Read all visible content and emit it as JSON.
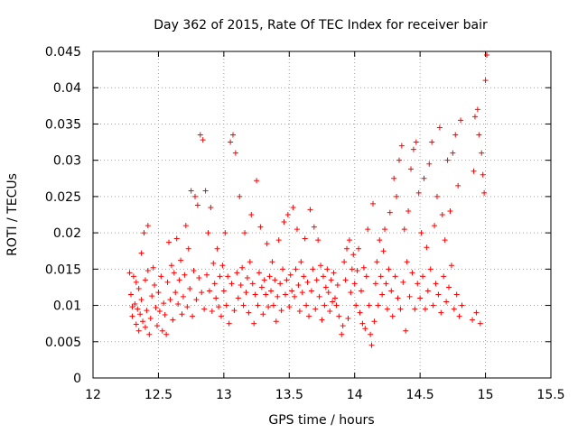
{
  "chart_data": {
    "type": "scatter",
    "title": "Day 362 of 2015, Rate Of TEC Index for receiver bair",
    "xlabel": "GPS time / hours",
    "ylabel": "ROTI / TECUs",
    "xlim": [
      12,
      15.5
    ],
    "ylim": [
      0,
      0.045
    ],
    "xticks": [
      "12",
      "12.5",
      "13",
      "13.5",
      "14",
      "14.5",
      "15",
      "15.5"
    ],
    "yticks": [
      "0",
      "0.005",
      "0.01",
      "0.015",
      "0.02",
      "0.025",
      "0.03",
      "0.035",
      "0.04",
      "0.045"
    ],
    "grid": true,
    "marker": "plus",
    "color": "#ff0000",
    "series": [
      {
        "points": [
          [
            12.28,
            0.0145
          ],
          [
            12.29,
            0.0115
          ],
          [
            12.3,
            0.0098
          ],
          [
            12.3,
            0.0085
          ],
          [
            12.31,
            0.014
          ],
          [
            12.32,
            0.0102
          ],
          [
            12.33,
            0.0074
          ],
          [
            12.33,
            0.0132
          ],
          [
            12.34,
            0.0095
          ],
          [
            12.35,
            0.0123
          ],
          [
            12.35,
            0.0065
          ],
          [
            12.36,
            0.0088
          ],
          [
            12.37,
            0.0108
          ],
          [
            12.37,
            0.0172
          ],
          [
            12.38,
            0.0078
          ],
          [
            12.39,
            0.02
          ],
          [
            12.4,
            0.007
          ],
          [
            12.4,
            0.0135
          ],
          [
            12.41,
            0.0093
          ],
          [
            12.42,
            0.021
          ],
          [
            12.42,
            0.0148
          ],
          [
            12.43,
            0.006
          ],
          [
            12.44,
            0.0082
          ],
          [
            12.45,
            0.0113
          ],
          [
            12.46,
            0.0152
          ],
          [
            12.47,
            0.0128
          ],
          [
            12.48,
            0.0097
          ],
          [
            12.49,
            0.0072
          ],
          [
            12.5,
            0.0118
          ],
          [
            12.51,
            0.0092
          ],
          [
            12.52,
            0.014
          ],
          [
            12.53,
            0.0065
          ],
          [
            12.54,
            0.0103
          ],
          [
            12.55,
            0.0087
          ],
          [
            12.56,
            0.006
          ],
          [
            12.57,
            0.0132
          ],
          [
            12.58,
            0.0187
          ],
          [
            12.59,
            0.0108
          ],
          [
            12.6,
            0.0155
          ],
          [
            12.61,
            0.008
          ],
          [
            12.62,
            0.0145
          ],
          [
            12.63,
            0.0118
          ],
          [
            12.64,
            0.0192
          ],
          [
            12.65,
            0.0102
          ],
          [
            12.66,
            0.0135
          ],
          [
            12.67,
            0.0162
          ],
          [
            12.68,
            0.0088
          ],
          [
            12.69,
            0.0112
          ],
          [
            12.7,
            0.0142
          ],
          [
            12.71,
            0.021
          ],
          [
            12.72,
            0.0098
          ],
          [
            12.73,
            0.0178
          ],
          [
            12.74,
            0.0123
          ],
          [
            12.75,
            0.0258
          ],
          [
            12.76,
            0.0085
          ],
          [
            12.77,
            0.0148
          ],
          [
            12.78,
            0.025
          ],
          [
            12.79,
            0.0108
          ],
          [
            12.8,
            0.0238
          ],
          [
            12.81,
            0.0138
          ],
          [
            12.82,
            0.0335
          ],
          [
            12.83,
            0.0118
          ],
          [
            12.84,
            0.0328
          ],
          [
            12.85,
            0.0095
          ],
          [
            12.86,
            0.0258
          ],
          [
            12.87,
            0.0142
          ],
          [
            12.88,
            0.02
          ],
          [
            12.89,
            0.012
          ],
          [
            12.9,
            0.0235
          ],
          [
            12.91,
            0.0092
          ],
          [
            12.92,
            0.0158
          ],
          [
            12.93,
            0.013
          ],
          [
            12.94,
            0.011
          ],
          [
            12.95,
            0.0178
          ],
          [
            12.96,
            0.0098
          ],
          [
            12.97,
            0.014
          ],
          [
            12.98,
            0.0085
          ],
          [
            12.99,
            0.0155
          ],
          [
            13.0,
            0.012
          ],
          [
            13.01,
            0.02
          ],
          [
            13.02,
            0.01
          ],
          [
            13.03,
            0.014
          ],
          [
            13.04,
            0.0075
          ],
          [
            13.05,
            0.0325
          ],
          [
            13.06,
            0.013
          ],
          [
            13.07,
            0.0335
          ],
          [
            13.08,
            0.0093
          ],
          [
            13.09,
            0.031
          ],
          [
            13.1,
            0.0145
          ],
          [
            13.11,
            0.011
          ],
          [
            13.12,
            0.025
          ],
          [
            13.13,
            0.0128
          ],
          [
            13.14,
            0.0152
          ],
          [
            13.15,
            0.01
          ],
          [
            13.16,
            0.02
          ],
          [
            13.17,
            0.0118
          ],
          [
            13.18,
            0.0138
          ],
          [
            13.19,
            0.009
          ],
          [
            13.2,
            0.016
          ],
          [
            13.21,
            0.0225
          ],
          [
            13.22,
            0.013
          ],
          [
            13.23,
            0.0075
          ],
          [
            13.24,
            0.0115
          ],
          [
            13.25,
            0.0272
          ],
          [
            13.26,
            0.01
          ],
          [
            13.27,
            0.0145
          ],
          [
            13.28,
            0.0208
          ],
          [
            13.29,
            0.0125
          ],
          [
            13.3,
            0.0088
          ],
          [
            13.31,
            0.0135
          ],
          [
            13.32,
            0.0115
          ],
          [
            13.33,
            0.0185
          ],
          [
            13.34,
            0.0098
          ],
          [
            13.35,
            0.014
          ],
          [
            13.36,
            0.012
          ],
          [
            13.37,
            0.016
          ],
          [
            13.38,
            0.01
          ],
          [
            13.39,
            0.0135
          ],
          [
            13.4,
            0.0078
          ],
          [
            13.41,
            0.0112
          ],
          [
            13.42,
            0.019
          ],
          [
            13.43,
            0.013
          ],
          [
            13.44,
            0.0093
          ],
          [
            13.45,
            0.015
          ],
          [
            13.46,
            0.0215
          ],
          [
            13.47,
            0.0115
          ],
          [
            13.48,
            0.0135
          ],
          [
            13.49,
            0.0225
          ],
          [
            13.5,
            0.0098
          ],
          [
            13.51,
            0.0142
          ],
          [
            13.52,
            0.012
          ],
          [
            13.53,
            0.0235
          ],
          [
            13.54,
            0.0112
          ],
          [
            13.55,
            0.015
          ],
          [
            13.56,
            0.0205
          ],
          [
            13.57,
            0.0128
          ],
          [
            13.58,
            0.0092
          ],
          [
            13.59,
            0.016
          ],
          [
            13.6,
            0.0118
          ],
          [
            13.61,
            0.014
          ],
          [
            13.62,
            0.0192
          ],
          [
            13.63,
            0.01
          ],
          [
            13.64,
            0.0132
          ],
          [
            13.65,
            0.0085
          ],
          [
            13.66,
            0.0232
          ],
          [
            13.67,
            0.012
          ],
          [
            13.68,
            0.015
          ],
          [
            13.69,
            0.0208
          ],
          [
            13.7,
            0.0095
          ],
          [
            13.71,
            0.0135
          ],
          [
            13.72,
            0.019
          ],
          [
            13.73,
            0.0112
          ],
          [
            13.74,
            0.0155
          ],
          [
            13.75,
            0.008
          ],
          [
            13.76,
            0.014
          ],
          [
            13.77,
            0.01
          ],
          [
            13.78,
            0.0125
          ],
          [
            13.79,
            0.015
          ],
          [
            13.8,
            0.0118
          ],
          [
            13.81,
            0.0092
          ],
          [
            13.82,
            0.0135
          ],
          [
            13.83,
            0.0105
          ],
          [
            13.84,
            0.0145
          ],
          [
            13.85,
            0.011
          ],
          [
            13.86,
            0.01
          ],
          [
            13.87,
            0.0128
          ],
          [
            13.88,
            0.0085
          ],
          [
            13.9,
            0.006
          ],
          [
            13.91,
            0.0072
          ],
          [
            13.92,
            0.016
          ],
          [
            13.93,
            0.0135
          ],
          [
            13.94,
            0.0178
          ],
          [
            13.95,
            0.0082
          ],
          [
            13.96,
            0.019
          ],
          [
            13.97,
            0.0118
          ],
          [
            13.98,
            0.015
          ],
          [
            13.99,
            0.017
          ],
          [
            14.0,
            0.013
          ],
          [
            14.01,
            0.01
          ],
          [
            14.02,
            0.0148
          ],
          [
            14.03,
            0.0178
          ],
          [
            14.04,
            0.009
          ],
          [
            14.05,
            0.012
          ],
          [
            14.06,
            0.0075
          ],
          [
            14.07,
            0.0152
          ],
          [
            14.08,
            0.0068
          ],
          [
            14.09,
            0.014
          ],
          [
            14.1,
            0.0205
          ],
          [
            14.11,
            0.01
          ],
          [
            14.12,
            0.006
          ],
          [
            14.13,
            0.0045
          ],
          [
            14.14,
            0.024
          ],
          [
            14.15,
            0.0078
          ],
          [
            14.16,
            0.013
          ],
          [
            14.17,
            0.016
          ],
          [
            14.18,
            0.01
          ],
          [
            14.19,
            0.019
          ],
          [
            14.2,
            0.014
          ],
          [
            14.21,
            0.0115
          ],
          [
            14.22,
            0.0175
          ],
          [
            14.23,
            0.0205
          ],
          [
            14.24,
            0.013
          ],
          [
            14.25,
            0.0095
          ],
          [
            14.26,
            0.015
          ],
          [
            14.27,
            0.0228
          ],
          [
            14.28,
            0.012
          ],
          [
            14.29,
            0.0085
          ],
          [
            14.3,
            0.0275
          ],
          [
            14.31,
            0.014
          ],
          [
            14.32,
            0.025
          ],
          [
            14.33,
            0.011
          ],
          [
            14.34,
            0.03
          ],
          [
            14.35,
            0.0095
          ],
          [
            14.36,
            0.032
          ],
          [
            14.37,
            0.0132
          ],
          [
            14.38,
            0.0205
          ],
          [
            14.39,
            0.0065
          ],
          [
            14.4,
            0.016
          ],
          [
            14.41,
            0.023
          ],
          [
            14.42,
            0.0112
          ],
          [
            14.43,
            0.0288
          ],
          [
            14.44,
            0.0145
          ],
          [
            14.45,
            0.0315
          ],
          [
            14.46,
            0.0095
          ],
          [
            14.47,
            0.0325
          ],
          [
            14.48,
            0.013
          ],
          [
            14.49,
            0.0255
          ],
          [
            14.5,
            0.011
          ],
          [
            14.51,
            0.02
          ],
          [
            14.52,
            0.014
          ],
          [
            14.53,
            0.0275
          ],
          [
            14.54,
            0.0095
          ],
          [
            14.55,
            0.018
          ],
          [
            14.56,
            0.012
          ],
          [
            14.57,
            0.0295
          ],
          [
            14.58,
            0.015
          ],
          [
            14.59,
            0.0325
          ],
          [
            14.6,
            0.01
          ],
          [
            14.61,
            0.021
          ],
          [
            14.62,
            0.013
          ],
          [
            14.63,
            0.025
          ],
          [
            14.64,
            0.0115
          ],
          [
            14.65,
            0.0345
          ],
          [
            14.66,
            0.009
          ],
          [
            14.67,
            0.0225
          ],
          [
            14.68,
            0.014
          ],
          [
            14.69,
            0.019
          ],
          [
            14.7,
            0.0105
          ],
          [
            14.71,
            0.03
          ],
          [
            14.72,
            0.0125
          ],
          [
            14.73,
            0.023
          ],
          [
            14.74,
            0.0155
          ],
          [
            14.75,
            0.031
          ],
          [
            14.76,
            0.0095
          ],
          [
            14.77,
            0.0335
          ],
          [
            14.78,
            0.0115
          ],
          [
            14.79,
            0.0265
          ],
          [
            14.8,
            0.0085
          ],
          [
            14.81,
            0.0355
          ],
          [
            14.82,
            0.01
          ],
          [
            14.9,
            0.008
          ],
          [
            14.91,
            0.0285
          ],
          [
            14.92,
            0.036
          ],
          [
            14.93,
            0.009
          ],
          [
            14.94,
            0.037
          ],
          [
            14.95,
            0.0335
          ],
          [
            14.96,
            0.0075
          ],
          [
            14.97,
            0.031
          ],
          [
            14.98,
            0.028
          ],
          [
            14.99,
            0.0255
          ],
          [
            15.0,
            0.041
          ],
          [
            15.01,
            0.0445
          ]
        ]
      }
    ]
  }
}
